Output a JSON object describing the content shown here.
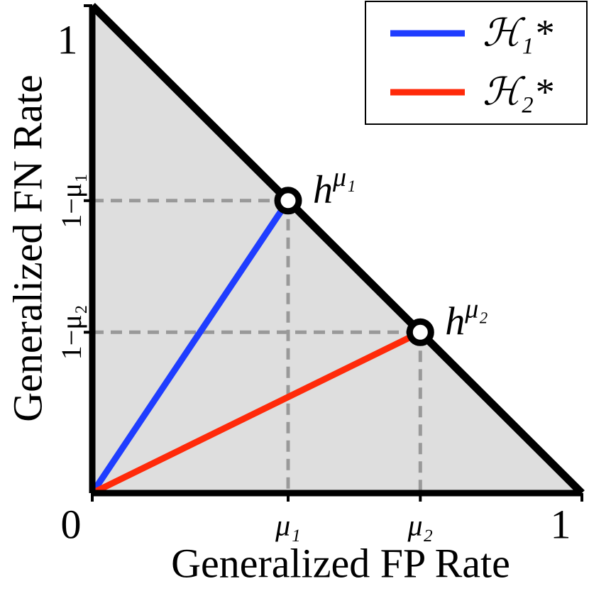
{
  "chart_data": {
    "type": "line",
    "xlabel": "Generalized FP Rate",
    "ylabel": "Generalized FN Rate",
    "xlim": [
      0,
      1
    ],
    "ylim": [
      0,
      1
    ],
    "xticks": [
      0,
      {
        "value": 0.4,
        "label": "μ₁"
      },
      {
        "value": 0.67,
        "label": "μ₂"
      },
      1
    ],
    "yticks": [
      1,
      {
        "value": 0.6,
        "label": "1−μ₁"
      },
      {
        "value": 0.33,
        "label": "1−μ₂"
      }
    ],
    "series": [
      {
        "name": "ℋ₁*",
        "color": "#1f3dff",
        "x": [
          0,
          0.4
        ],
        "values": [
          0,
          0.6
        ]
      },
      {
        "name": "ℋ₂*",
        "color": "#ff2a0a",
        "x": [
          0,
          0.67
        ],
        "values": [
          0,
          0.33
        ]
      }
    ],
    "annotations": [
      {
        "text": "h",
        "sup": "μ₁",
        "x": 0.4,
        "y": 0.6
      },
      {
        "text": "h",
        "sup": "μ₂",
        "x": 0.67,
        "y": 0.33
      }
    ],
    "legend": "upper right"
  }
}
